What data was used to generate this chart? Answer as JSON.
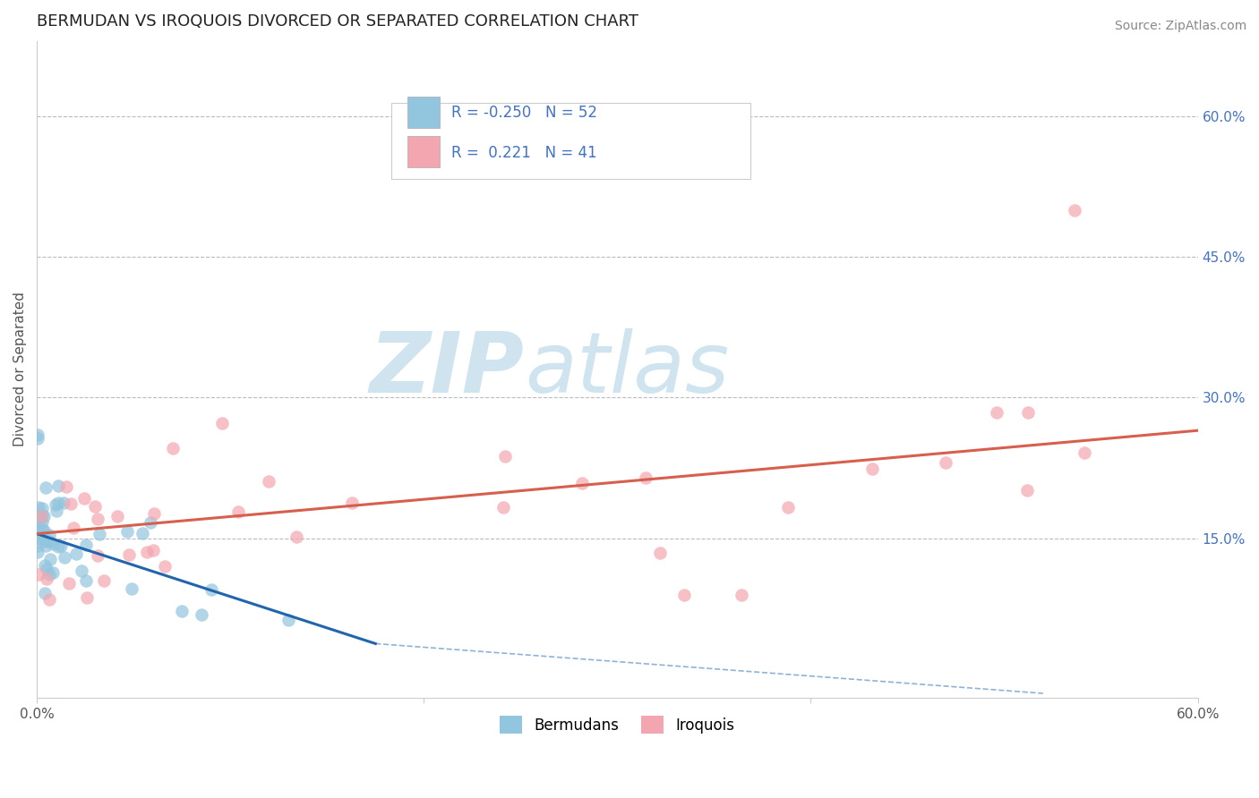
{
  "title": "BERMUDAN VS IROQUOIS DIVORCED OR SEPARATED CORRELATION CHART",
  "source_text": "Source: ZipAtlas.com",
  "ylabel": "Divorced or Separated",
  "xlim": [
    0.0,
    0.6
  ],
  "ylim": [
    -0.02,
    0.68
  ],
  "ytick_right_values": [
    0.15,
    0.3,
    0.45,
    0.6
  ],
  "ytick_right_labels": [
    "15.0%",
    "30.0%",
    "45.0%",
    "60.0%"
  ],
  "blue_R": -0.25,
  "blue_N": 52,
  "pink_R": 0.221,
  "pink_N": 41,
  "blue_color": "#92c5de",
  "pink_color": "#f4a6b0",
  "blue_line_color": "#2166ac",
  "pink_line_color": "#d6604d",
  "watermark_color": "#d0e4f0",
  "legend_label_blue": "Bermudans",
  "legend_label_pink": "Iroquois",
  "blue_line_x0": 0.0,
  "blue_line_x1": 0.175,
  "blue_line_y0": 0.155,
  "blue_line_y1": 0.038,
  "pink_line_x0": 0.0,
  "pink_line_x1": 0.6,
  "pink_line_y0": 0.155,
  "pink_line_y1": 0.265,
  "dashed_line_x0": 0.175,
  "dashed_line_x1": 0.52,
  "dashed_line_y0": 0.038,
  "dashed_line_y1": -0.015,
  "blue_seed": 77,
  "pink_seed": 88
}
